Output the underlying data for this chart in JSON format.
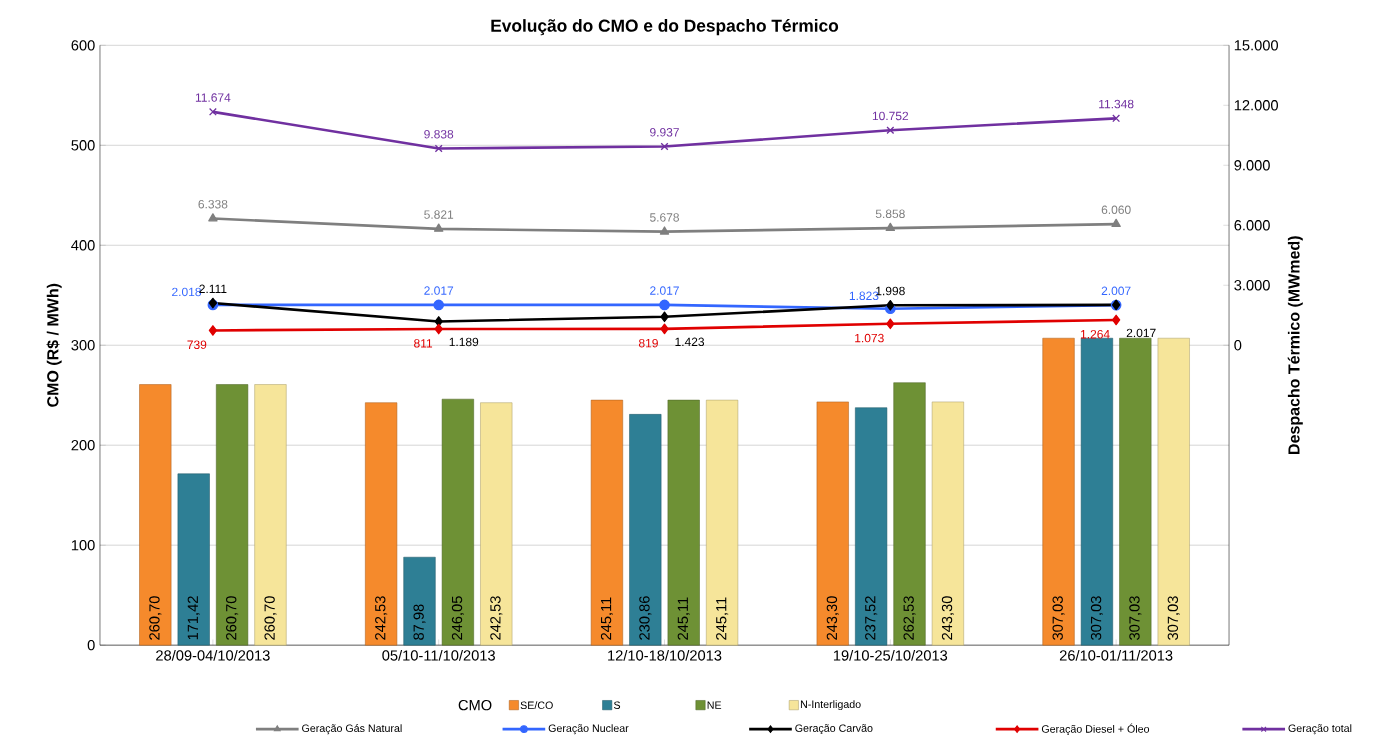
{
  "chart_data": {
    "type": "bar",
    "title": "Evolução do CMO e do Despacho Térmico",
    "ylabel": "CMO (R$ / MWh)",
    "y2label": "Despacho Térmico (MWmed)",
    "legend_title": "CMO",
    "categories": [
      "28/09-04/10/2013",
      "05/10-11/10/2013",
      "12/10-18/10/2013",
      "19/10-25/10/2013",
      "26/10-01/11/2013"
    ],
    "series": [
      {
        "name": "SE/CO",
        "color": "#f58a2c",
        "values": [
          260.7,
          242.53,
          245.11,
          243.3,
          307.03
        ],
        "value_labels": [
          "260,70",
          "242,53",
          "245,11",
          "243,30",
          "307,03"
        ]
      },
      {
        "name": "S",
        "color": "#2e7f95",
        "values": [
          171.42,
          87.98,
          230.86,
          237.52,
          307.03
        ],
        "value_labels": [
          "171,42",
          "87,98",
          "230,86",
          "237,52",
          "307,03"
        ]
      },
      {
        "name": "NE",
        "color": "#6e9135",
        "values": [
          260.7,
          246.05,
          245.11,
          262.53,
          307.03
        ],
        "value_labels": [
          "260,70",
          "246,05",
          "245,11",
          "262,53",
          "307,03"
        ]
      },
      {
        "name": "N-Interligado",
        "color": "#f6e59a",
        "values": [
          260.7,
          242.53,
          245.11,
          243.3,
          307.03
        ],
        "value_labels": [
          "260,70",
          "242,53",
          "245,11",
          "243,30",
          "307,03"
        ]
      },
      {
        "name": "Geração Gás Natural",
        "type": "line",
        "axis": "y2",
        "marker": "triangle",
        "color": "#7f7f7f",
        "values": [
          6338,
          5821,
          5678,
          5858,
          6060
        ],
        "value_labels": [
          "6.338",
          "5.821",
          "5.678",
          "5.858",
          "6.060"
        ]
      },
      {
        "name": "Geração Nuclear",
        "type": "line",
        "axis": "y2",
        "marker": "circle",
        "color": "#3366ff",
        "values": [
          2018,
          2017,
          2017,
          1823,
          2007
        ],
        "value_labels": [
          "2.018",
          "2.017",
          "2.017",
          "1.823",
          "2.007"
        ]
      },
      {
        "name": "Geração Carvão",
        "type": "line",
        "axis": "y2",
        "marker": "diamond",
        "color": "#000000",
        "values": [
          2111,
          1189,
          1423,
          1998,
          2017
        ],
        "value_labels": [
          "2.111",
          "1.189",
          "1.423",
          "1.998",
          "2.017"
        ]
      },
      {
        "name": "Geração Diesel + Óleo",
        "type": "line",
        "axis": "y2",
        "marker": "diamond",
        "color": "#e00000",
        "values": [
          739,
          811,
          819,
          1073,
          1264
        ],
        "value_labels": [
          "739",
          "811",
          "819",
          "1.073",
          "1.264"
        ]
      },
      {
        "name": "Geração total",
        "type": "line",
        "axis": "y2",
        "marker": "cross",
        "color": "#7030a0",
        "values": [
          11674,
          9838,
          9937,
          10752,
          11348
        ],
        "value_labels": [
          "11.674",
          "9.838",
          "9.937",
          "10.752",
          "11.348"
        ]
      }
    ],
    "ylim": [
      0,
      600
    ],
    "yticks": [
      0,
      100,
      200,
      300,
      400,
      500,
      600
    ],
    "y2lim": [
      -15000,
      15000
    ],
    "y2ticks": [
      {
        "value": 0,
        "label": "0"
      },
      {
        "value": 3000,
        "label": "3.000"
      },
      {
        "value": 6000,
        "label": "6.000"
      },
      {
        "value": 9000,
        "label": "9.000"
      },
      {
        "value": 12000,
        "label": "12.000"
      },
      {
        "value": 15000,
        "label": "15.000"
      }
    ],
    "grid": "y",
    "legend": "bottom"
  }
}
